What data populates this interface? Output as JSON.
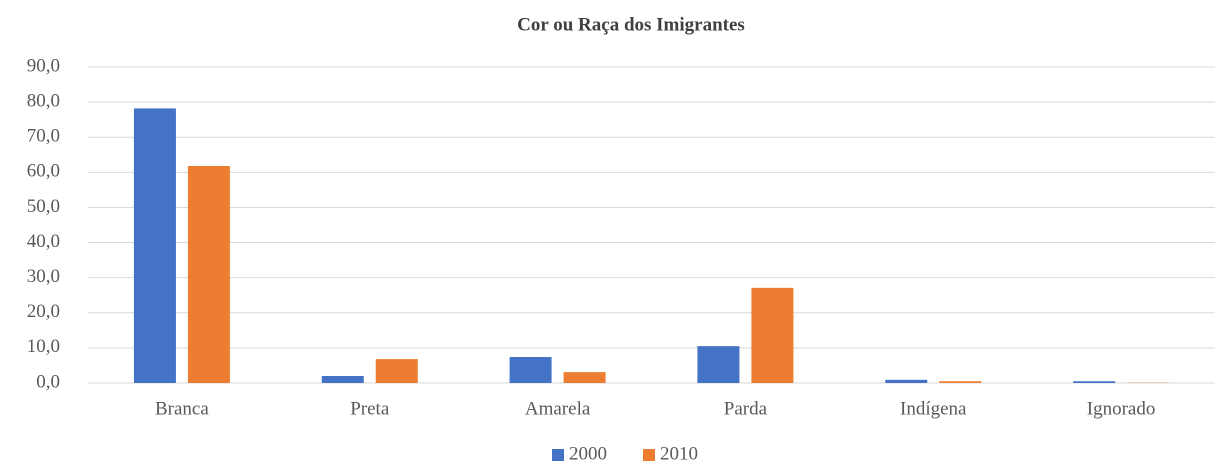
{
  "chart_data": {
    "type": "bar",
    "title": "Cor ou Raça dos Imigrantes",
    "categories": [
      "Branca",
      "Preta",
      "Amarela",
      "Parda",
      "Indígena",
      "Ignorado"
    ],
    "series": [
      {
        "name": "2000",
        "color": "#4472c4",
        "values": [
          78.2,
          2.0,
          7.4,
          10.5,
          0.9,
          0.5
        ]
      },
      {
        "name": "2010",
        "color": "#ed7d31",
        "values": [
          61.8,
          6.8,
          3.1,
          27.1,
          0.5,
          0.1
        ]
      }
    ],
    "ylim": [
      0,
      90
    ],
    "yticks": [
      {
        "value": 0,
        "label": "0,0"
      },
      {
        "value": 10,
        "label": "10,0"
      },
      {
        "value": 20,
        "label": "20,0"
      },
      {
        "value": 30,
        "label": "30,0"
      },
      {
        "value": 40,
        "label": "40,0"
      },
      {
        "value": 50,
        "label": "50,0"
      },
      {
        "value": 60,
        "label": "60,0"
      },
      {
        "value": 70,
        "label": "70,0"
      },
      {
        "value": 80,
        "label": "80,0"
      },
      {
        "value": 90,
        "label": "90,0"
      }
    ],
    "grid": true,
    "legend": "bottom"
  }
}
